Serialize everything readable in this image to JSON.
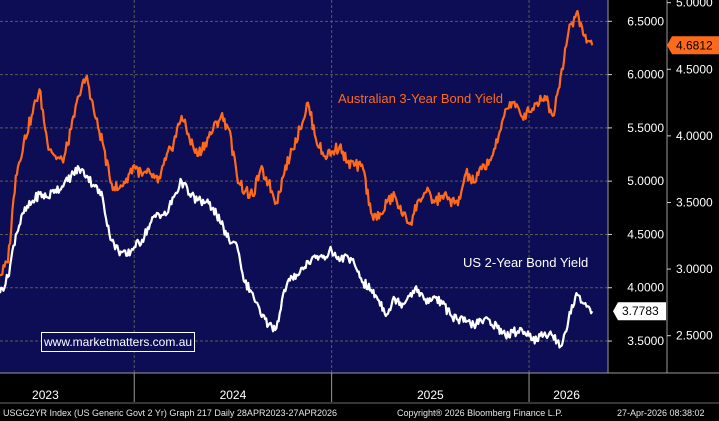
{
  "chart_data": {
    "type": "line",
    "title": "",
    "xlabel": "",
    "ylabel": "",
    "x_ticks": [
      "2023",
      "2024",
      "2025",
      "2026"
    ],
    "left_axis": {
      "ticks": [
        "6.5000",
        "6.0000",
        "5.5000",
        "5.0000",
        "4.5000",
        "4.0000",
        "3.5000"
      ],
      "range": [
        3.2,
        6.7
      ]
    },
    "right_axis": {
      "ticks": [
        "5.0000",
        "4.5000",
        "4.0000",
        "3.5000",
        "3.0000",
        "2.5000"
      ],
      "range": [
        2.22,
        5.02
      ]
    },
    "series": [
      {
        "name": "Australian 3-Year Bond Yield",
        "axis": "right",
        "color": "#ff6a1a",
        "last_value_label": "4.6812",
        "dates": [
          2023.32,
          2023.36,
          2023.4,
          2023.44,
          2023.48,
          2023.52,
          2023.56,
          2023.6,
          2023.64,
          2023.68,
          2023.72,
          2023.76,
          2023.8,
          2023.84,
          2023.88,
          2023.92,
          2023.96,
          2024.0,
          2024.04,
          2024.08,
          2024.12,
          2024.16,
          2024.2,
          2024.24,
          2024.28,
          2024.32,
          2024.36,
          2024.4,
          2024.44,
          2024.48,
          2024.52,
          2024.56,
          2024.6,
          2024.64,
          2024.68,
          2024.72,
          2024.76,
          2024.8,
          2024.84,
          2024.88,
          2024.92,
          2024.96,
          2025.0,
          2025.04,
          2025.08,
          2025.12,
          2025.16,
          2025.2,
          2025.24,
          2025.28,
          2025.32,
          2025.36,
          2025.4,
          2025.44,
          2025.48,
          2025.52,
          2025.56,
          2025.6,
          2025.64,
          2025.68,
          2025.72,
          2025.76,
          2025.8,
          2025.84,
          2025.88,
          2025.92,
          2025.96,
          2026.0,
          2026.04,
          2026.08,
          2026.12,
          2026.16,
          2026.2,
          2026.24,
          2026.28,
          2026.32
        ],
        "values": [
          2.95,
          3.05,
          3.7,
          3.95,
          4.15,
          4.35,
          3.95,
          3.85,
          3.8,
          4.05,
          4.3,
          4.45,
          4.15,
          3.95,
          3.65,
          3.6,
          3.68,
          3.78,
          3.7,
          3.72,
          3.65,
          3.82,
          3.95,
          4.15,
          3.98,
          3.85,
          3.95,
          4.05,
          4.15,
          4.05,
          3.7,
          3.58,
          3.55,
          3.75,
          3.65,
          3.5,
          3.72,
          3.9,
          4.05,
          4.25,
          3.98,
          3.85,
          3.88,
          3.92,
          3.8,
          3.78,
          3.75,
          3.42,
          3.38,
          3.5,
          3.55,
          3.4,
          3.35,
          3.52,
          3.58,
          3.5,
          3.55,
          3.52,
          3.48,
          3.72,
          3.65,
          3.75,
          3.82,
          3.95,
          4.2,
          4.25,
          4.15,
          4.18,
          4.25,
          4.3,
          4.15,
          4.45,
          4.78,
          4.92,
          4.75,
          4.68
        ]
      },
      {
        "name": "US 2-Year Bond Yield",
        "axis": "left",
        "color": "#ffffff",
        "last_value_label": "3.7783",
        "dates": [
          2023.32,
          2023.36,
          2023.4,
          2023.44,
          2023.48,
          2023.52,
          2023.56,
          2023.6,
          2023.64,
          2023.68,
          2023.72,
          2023.76,
          2023.8,
          2023.84,
          2023.88,
          2023.92,
          2023.96,
          2024.0,
          2024.04,
          2024.08,
          2024.12,
          2024.16,
          2024.2,
          2024.24,
          2024.28,
          2024.32,
          2024.36,
          2024.4,
          2024.44,
          2024.48,
          2024.52,
          2024.56,
          2024.6,
          2024.64,
          2024.68,
          2024.72,
          2024.76,
          2024.8,
          2024.84,
          2024.88,
          2024.92,
          2024.96,
          2025.0,
          2025.04,
          2025.08,
          2025.12,
          2025.16,
          2025.2,
          2025.24,
          2025.28,
          2025.32,
          2025.36,
          2025.4,
          2025.44,
          2025.48,
          2025.52,
          2025.56,
          2025.6,
          2025.64,
          2025.68,
          2025.72,
          2025.76,
          2025.8,
          2025.84,
          2025.88,
          2025.92,
          2025.96,
          2026.0,
          2026.04,
          2026.08,
          2026.12,
          2026.16,
          2026.2,
          2026.24,
          2026.28,
          2026.32
        ],
        "values": [
          3.95,
          4.1,
          4.5,
          4.7,
          4.8,
          4.88,
          4.85,
          4.92,
          4.95,
          5.05,
          5.12,
          5.05,
          4.95,
          4.85,
          4.45,
          4.35,
          4.3,
          4.38,
          4.45,
          4.6,
          4.7,
          4.68,
          4.85,
          5.0,
          4.88,
          4.82,
          4.8,
          4.75,
          4.6,
          4.45,
          4.4,
          4.05,
          3.95,
          3.75,
          3.65,
          3.62,
          3.98,
          4.1,
          4.15,
          4.25,
          4.28,
          4.3,
          4.35,
          4.25,
          4.3,
          4.2,
          4.05,
          3.98,
          3.88,
          3.75,
          3.9,
          3.85,
          3.95,
          3.98,
          3.85,
          3.92,
          3.85,
          3.75,
          3.7,
          3.68,
          3.65,
          3.68,
          3.7,
          3.62,
          3.55,
          3.58,
          3.62,
          3.55,
          3.5,
          3.58,
          3.55,
          3.45,
          3.7,
          3.95,
          3.85,
          3.78
        ]
      }
    ],
    "annotations": [
      {
        "text": "Australian 3-Year Bond Yield",
        "color": "#ff6a1a"
      },
      {
        "text": "US 2-Year Bond Yield",
        "color": "#ffffff"
      }
    ],
    "grid": true,
    "background": "#0d0d55"
  },
  "watermark": "www.marketmatters.com.au",
  "footer": {
    "left": "USGG2YR Index (US Generic Govt 2 Yr) Graph 217 Daily 28APR2023-27APR2026",
    "center": "Copyright® 2026 Bloomberg Finance L.P.",
    "right": "27-Apr-2026 08:38:02"
  },
  "colors": {
    "plot_bg": "#0d0d55",
    "frame_bg": "#000000",
    "grid": "#5a5a5a",
    "axis_text": "#ffffff",
    "aus_line": "#ff6a1a",
    "us_line": "#ffffff"
  }
}
